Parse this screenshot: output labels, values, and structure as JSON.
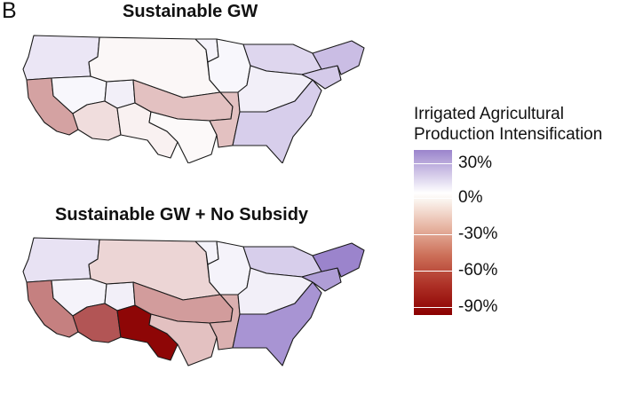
{
  "panel_letter": "B",
  "titles": {
    "top": "Sustainable GW",
    "bottom": "Sustainable GW + No Subsidy"
  },
  "legend": {
    "title_line1": "Irrigated Agricultural",
    "title_line2": "Production Intensification",
    "labels": [
      "30%",
      "0%",
      "-30%",
      "-60%",
      "-90%"
    ],
    "values": [
      30,
      0,
      -30,
      -60,
      -90
    ]
  },
  "color_scale": {
    "max_color": "#9b84cc",
    "zero_color": "#ffffff",
    "min_color": "#8b0000"
  },
  "regions": {
    "pacific_northwest": {
      "sustainable_gw": 6,
      "sustainable_gw_no_subsidy": 7
    },
    "california": {
      "sustainable_gw": -33,
      "sustainable_gw_no_subsidy": -45
    },
    "great_basin": {
      "sustainable_gw": 2,
      "sustainable_gw_no_subsidy": 3
    },
    "upper_colorado": {
      "sustainable_gw": 4,
      "sustainable_gw_no_subsidy": 4
    },
    "lower_colorado": {
      "sustainable_gw": -12,
      "sustainable_gw_no_subsidy": -60
    },
    "rio_grande": {
      "sustainable_gw": -5,
      "sustainable_gw_no_subsidy": -88
    },
    "missouri": {
      "sustainable_gw": -3,
      "sustainable_gw_no_subsidy": -15
    },
    "arkansas_white_red": {
      "sustainable_gw": -22,
      "sustainable_gw_no_subsidy": -35
    },
    "texas_gulf": {
      "sustainable_gw": -2,
      "sustainable_gw_no_subsidy": -22
    },
    "souris_red_rainy": {
      "sustainable_gw": 3,
      "sustainable_gw_no_subsidy": 3
    },
    "upper_mississippi": {
      "sustainable_gw": 2,
      "sustainable_gw_no_subsidy": 3
    },
    "great_lakes": {
      "sustainable_gw": 10,
      "sustainable_gw_no_subsidy": 12
    },
    "ohio_tennessee": {
      "sustainable_gw": 4,
      "sustainable_gw_no_subsidy": 4
    },
    "lower_mississippi": {
      "sustainable_gw": -22,
      "sustainable_gw_no_subsidy": -28
    },
    "south_atlantic_gulf": {
      "sustainable_gw": 12,
      "sustainable_gw_no_subsidy": 26
    },
    "mid_atlantic": {
      "sustainable_gw": 13,
      "sustainable_gw_no_subsidy": 24
    },
    "new_england": {
      "sustainable_gw": 16,
      "sustainable_gw_no_subsidy": 32
    }
  }
}
